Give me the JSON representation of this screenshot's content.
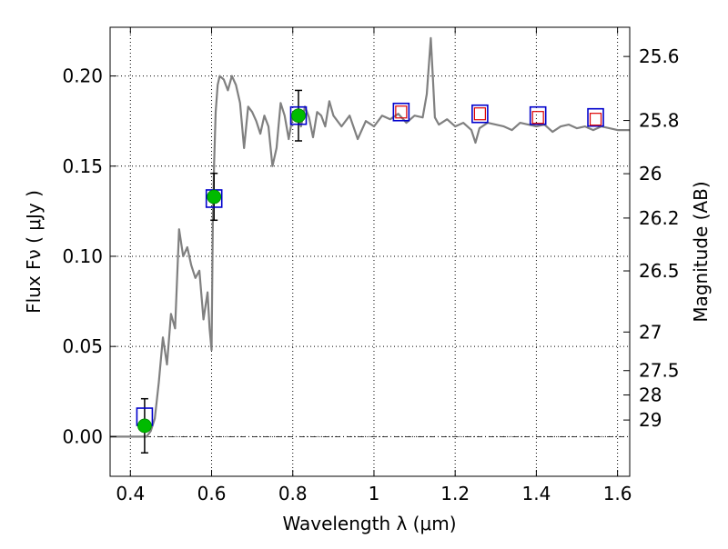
{
  "chart_data": {
    "type": "scatter",
    "xlabel": "Wavelength  λ (μm)",
    "ylabel_left": "Flux  Fν  ( μJy )",
    "ylabel_right": "Magnitude (AB)",
    "xlim": [
      0.35,
      1.63
    ],
    "ylim": [
      -0.022,
      0.227
    ],
    "grid": true,
    "x_ticks": [
      0.4,
      0.6,
      0.8,
      1.0,
      1.2,
      1.4,
      1.6
    ],
    "x_tick_labels": [
      "0.4",
      "0.6",
      "0.8",
      "1",
      "1.2",
      "1.4",
      "1.6"
    ],
    "y_ticks": [
      0.0,
      0.05,
      0.1,
      0.15,
      0.2
    ],
    "y_tick_labels": [
      "0.00",
      "0.05",
      "0.10",
      "0.15",
      "0.20"
    ],
    "mag_ticks": [
      {
        "label": "25.6",
        "flux": 0.2108
      },
      {
        "label": "25.8",
        "flux": 0.1753
      },
      {
        "label": "26",
        "flux": 0.1458
      },
      {
        "label": "26.2",
        "flux": 0.1212
      },
      {
        "label": "26.5",
        "flux": 0.0919
      },
      {
        "label": "27",
        "flux": 0.058
      },
      {
        "label": "27.5",
        "flux": 0.0366
      },
      {
        "label": "28",
        "flux": 0.0231
      },
      {
        "label": "29",
        "flux": 0.0092
      }
    ],
    "measured": {
      "x": [
        0.435,
        0.606,
        0.814
      ],
      "y": [
        0.006,
        0.133,
        0.178
      ],
      "yerr": [
        0.015,
        0.013,
        0.014
      ],
      "color": "#00bb00"
    },
    "model_points": {
      "x": [
        0.435,
        0.606,
        0.814,
        1.067,
        1.261,
        1.404,
        1.546
      ],
      "y": [
        0.011,
        0.132,
        0.178,
        0.18,
        0.179,
        0.178,
        0.177
      ],
      "color": "#0000cc"
    },
    "predicted_points": {
      "x": [
        1.067,
        1.261,
        1.404,
        1.546
      ],
      "y": [
        0.18,
        0.179,
        0.177,
        0.176
      ],
      "color": "#dd0000"
    },
    "spectrum": {
      "color": "#808080",
      "x": [
        0.35,
        0.43,
        0.44,
        0.45,
        0.46,
        0.47,
        0.48,
        0.49,
        0.5,
        0.51,
        0.52,
        0.53,
        0.54,
        0.55,
        0.56,
        0.57,
        0.58,
        0.59,
        0.595,
        0.6,
        0.603,
        0.606,
        0.61,
        0.615,
        0.62,
        0.63,
        0.64,
        0.65,
        0.66,
        0.67,
        0.68,
        0.69,
        0.7,
        0.71,
        0.72,
        0.73,
        0.74,
        0.75,
        0.76,
        0.77,
        0.78,
        0.79,
        0.8,
        0.81,
        0.82,
        0.83,
        0.84,
        0.85,
        0.86,
        0.87,
        0.88,
        0.89,
        0.9,
        0.92,
        0.94,
        0.96,
        0.98,
        1.0,
        1.02,
        1.04,
        1.06,
        1.08,
        1.1,
        1.12,
        1.13,
        1.14,
        1.145,
        1.15,
        1.16,
        1.18,
        1.2,
        1.22,
        1.24,
        1.25,
        1.26,
        1.28,
        1.3,
        1.32,
        1.34,
        1.36,
        1.38,
        1.4,
        1.42,
        1.44,
        1.46,
        1.48,
        1.5,
        1.52,
        1.54,
        1.56,
        1.58,
        1.6,
        1.63
      ],
      "y": [
        0.0,
        0.0,
        0.0,
        0.003,
        0.01,
        0.03,
        0.055,
        0.04,
        0.068,
        0.06,
        0.115,
        0.1,
        0.105,
        0.095,
        0.088,
        0.092,
        0.065,
        0.08,
        0.06,
        0.048,
        0.12,
        0.15,
        0.18,
        0.195,
        0.2,
        0.198,
        0.192,
        0.2,
        0.195,
        0.185,
        0.16,
        0.183,
        0.18,
        0.175,
        0.168,
        0.178,
        0.172,
        0.15,
        0.16,
        0.185,
        0.178,
        0.165,
        0.178,
        0.18,
        0.172,
        0.183,
        0.177,
        0.166,
        0.18,
        0.178,
        0.172,
        0.186,
        0.178,
        0.172,
        0.178,
        0.165,
        0.175,
        0.172,
        0.178,
        0.176,
        0.179,
        0.174,
        0.178,
        0.177,
        0.19,
        0.221,
        0.2,
        0.177,
        0.173,
        0.176,
        0.172,
        0.174,
        0.17,
        0.163,
        0.171,
        0.174,
        0.173,
        0.172,
        0.17,
        0.174,
        0.173,
        0.172,
        0.173,
        0.169,
        0.172,
        0.173,
        0.171,
        0.172,
        0.17,
        0.172,
        0.171,
        0.17,
        0.17
      ]
    }
  }
}
